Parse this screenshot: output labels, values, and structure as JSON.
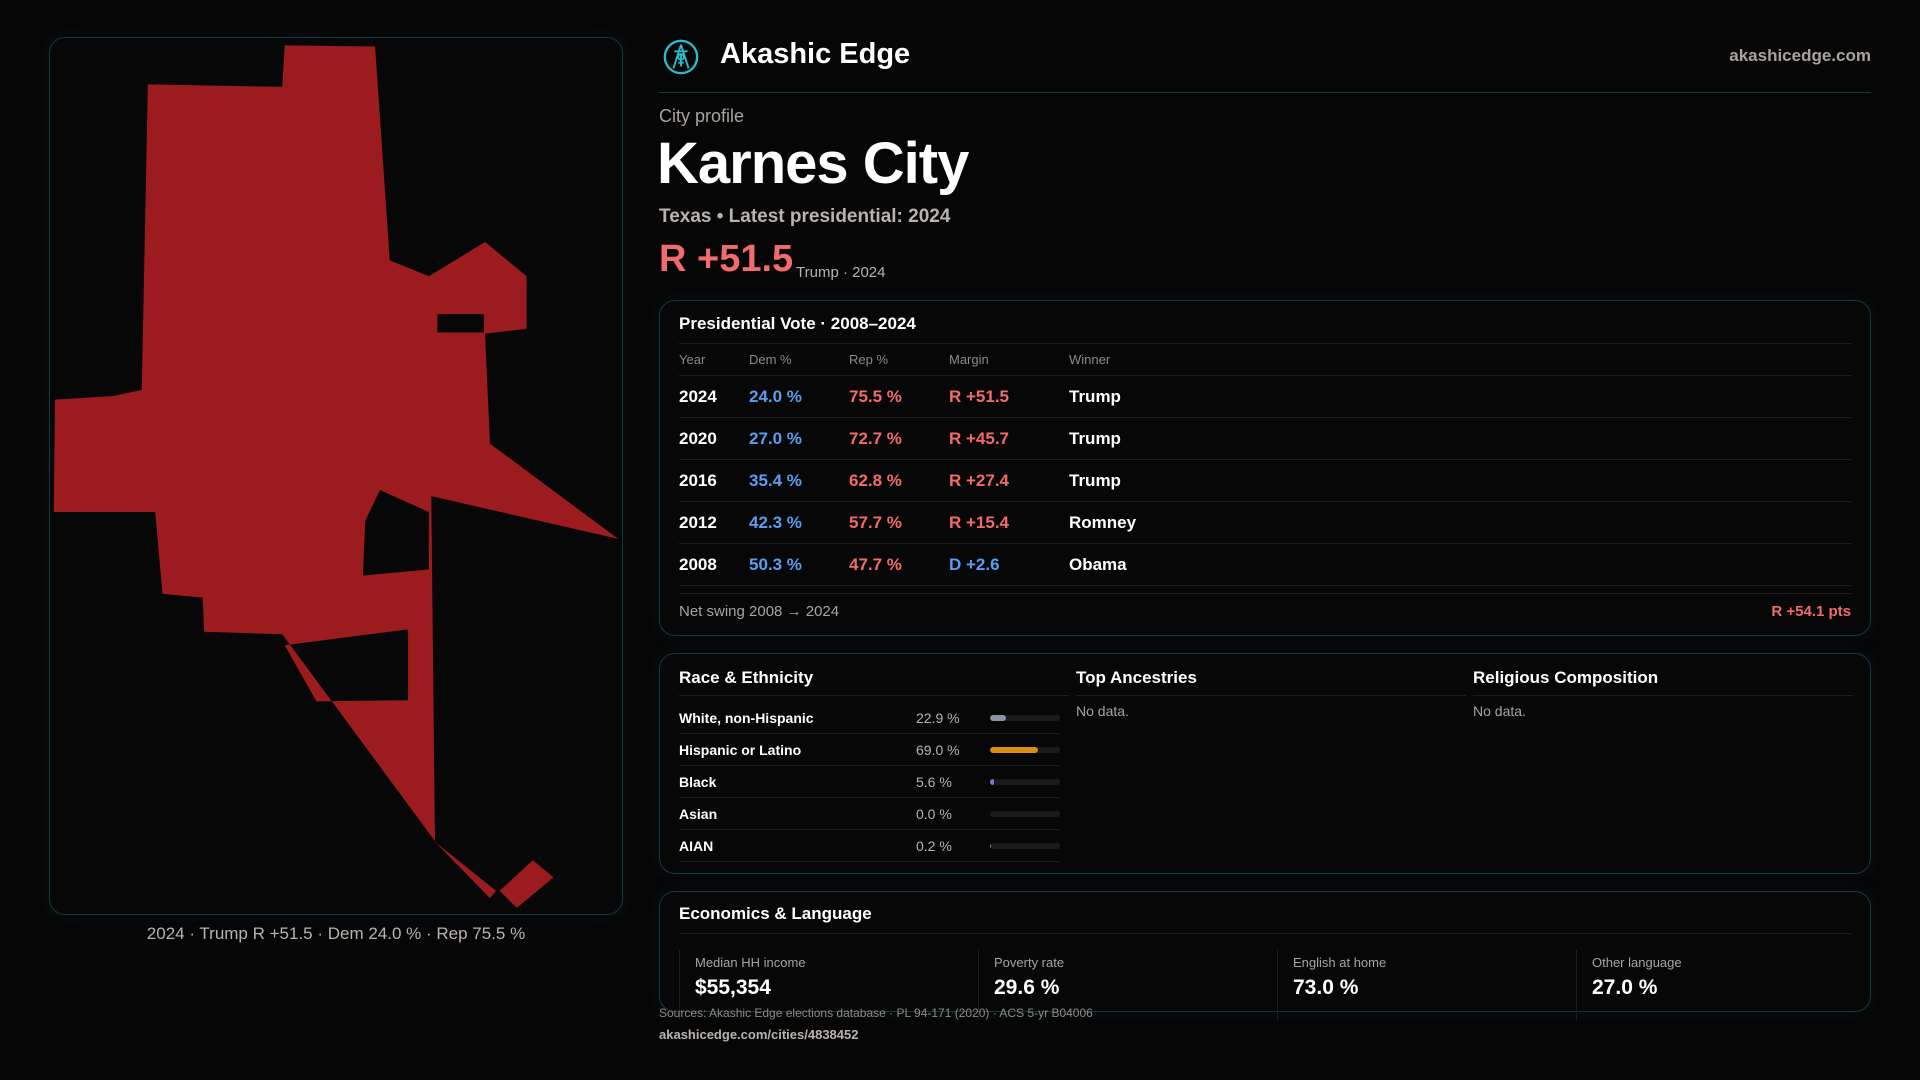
{
  "brand": {
    "name": "Akashic Edge",
    "site": "akashicedge.com",
    "logo_icon": "compass-key-emblem-icon",
    "accent": "#2fb8c8"
  },
  "profile": {
    "kicker": "City profile",
    "title": "Karnes City",
    "subtitle": "Texas • Latest presidential: 2024",
    "margin": "R +51.5",
    "margin_note": "Trump · 2024",
    "rep_color": "#f26b6b",
    "dem_color": "#5b9df0",
    "map_fill": "#9b1b1e"
  },
  "map": {
    "caption": "2024 · Trump R +51.5 · Dem 24.0 % · Rep 75.5 %"
  },
  "vote": {
    "title": "Presidential Vote · 2008–2024",
    "headers": [
      "Year",
      "Dem %",
      "Rep %",
      "Margin",
      "Winner"
    ],
    "rows": [
      {
        "year": "2024",
        "dem": "24.0 %",
        "rep": "75.5 %",
        "margin": "R +51.5",
        "party": "R",
        "winner": "Trump"
      },
      {
        "year": "2020",
        "dem": "27.0 %",
        "rep": "72.7 %",
        "margin": "R +45.7",
        "party": "R",
        "winner": "Trump"
      },
      {
        "year": "2016",
        "dem": "35.4 %",
        "rep": "62.8 %",
        "margin": "R +27.4",
        "party": "R",
        "winner": "Trump"
      },
      {
        "year": "2012",
        "dem": "42.3 %",
        "rep": "57.7 %",
        "margin": "R +15.4",
        "party": "R",
        "winner": "Romney"
      },
      {
        "year": "2008",
        "dem": "50.3 %",
        "rep": "47.7 %",
        "margin": "D +2.6",
        "party": "D",
        "winner": "Obama"
      }
    ],
    "swing_label": "Net swing 2008 → 2024",
    "swing_value": "R +54.1 pts"
  },
  "race": {
    "title": "Race & Ethnicity",
    "rows": [
      {
        "label": "White, non-Hispanic",
        "pct": "22.9 %",
        "value": 22.9,
        "color": "#8a94a6"
      },
      {
        "label": "Hispanic or Latino",
        "pct": "69.0 %",
        "value": 69.0,
        "color": "#d98e0f"
      },
      {
        "label": "Black",
        "pct": "5.6 %",
        "value": 5.6,
        "color": "#8b6fe0"
      },
      {
        "label": "Asian",
        "pct": "0.0 %",
        "value": 0.0,
        "color": "#4cc0a0"
      },
      {
        "label": "AIAN",
        "pct": "0.2 %",
        "value": 0.2,
        "color": "#c06060"
      }
    ]
  },
  "ancestry": {
    "title": "Top Ancestries",
    "empty": "No data."
  },
  "religion": {
    "title": "Religious Composition",
    "empty": "No data."
  },
  "econ": {
    "title": "Economics & Language",
    "cells": [
      {
        "label": "Median HH income",
        "value": "$55,354"
      },
      {
        "label": "Poverty rate",
        "value": "29.6 %"
      },
      {
        "label": "English at home",
        "value": "73.0 %"
      },
      {
        "label": "Other language",
        "value": "27.0 %"
      }
    ]
  },
  "footer": {
    "sources": "Sources: Akashic Edge elections database · PL 94-171 (2020) · ACS 5-yr B04006",
    "url": "akashicedge.com/cities/4838452"
  }
}
